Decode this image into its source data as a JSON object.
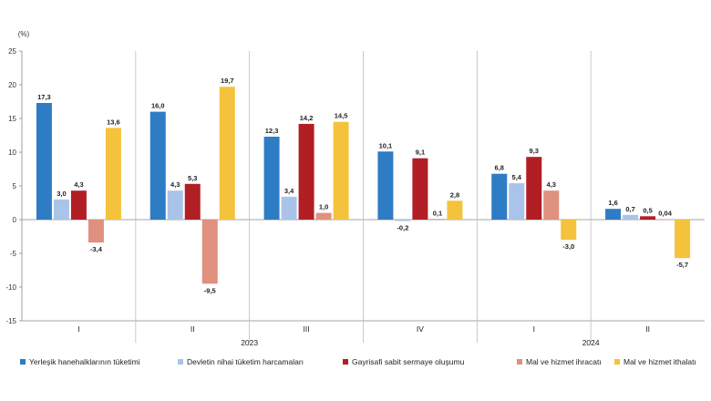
{
  "chart_data": {
    "type": "bar",
    "unit": "(%)",
    "ylim": [
      -15,
      25
    ],
    "yticks": [
      25,
      20,
      15,
      10,
      5,
      0,
      -5,
      -10,
      -15
    ],
    "categories": [
      "I",
      "II",
      "III",
      "IV",
      "I",
      "II"
    ],
    "years": [
      {
        "label": "2023",
        "from": 0,
        "to": 3
      },
      {
        "label": "2024",
        "from": 4,
        "to": 5
      }
    ],
    "series": [
      {
        "name": "Yerleşik hanehalklarının tüketimi",
        "color": "#2e7cc4",
        "values": [
          17.3,
          16.0,
          12.3,
          10.1,
          6.8,
          1.6
        ],
        "labels": [
          "17,3",
          "16,0",
          "12,3",
          "10,1",
          "6,8",
          "1,6"
        ]
      },
      {
        "name": "Devletin nihai tüketim harcamaları",
        "color": "#a9c4e8",
        "values": [
          3.0,
          4.3,
          3.4,
          -0.2,
          5.4,
          0.7
        ],
        "labels": [
          "3,0",
          "4,3",
          "3,4",
          "-0,2",
          "5,4",
          "0,7"
        ]
      },
      {
        "name": "Gayrisafi sabit sermaye oluşumu",
        "color": "#b11f24",
        "values": [
          4.3,
          5.3,
          14.2,
          9.1,
          9.3,
          0.5
        ],
        "labels": [
          "4,3",
          "5,3",
          "14,2",
          "9,1",
          "9,3",
          "0,5"
        ]
      },
      {
        "name": "Mal ve hizmet ihracatı",
        "color": "#e0907e",
        "values": [
          -3.4,
          -9.5,
          1.0,
          0.1,
          4.3,
          0.04
        ],
        "labels": [
          "-3,4",
          "-9,5",
          "1,0",
          "0,1",
          "4,3",
          "0,04"
        ]
      },
      {
        "name": "Mal ve hizmet ithalatı",
        "color": "#f5c23c",
        "values": [
          13.6,
          19.7,
          14.5,
          2.8,
          -3.0,
          -5.7
        ],
        "labels": [
          "13,6",
          "19,7",
          "14,5",
          "2,8",
          "-3,0",
          "-5,7"
        ]
      }
    ],
    "legend_position": "bottom"
  }
}
